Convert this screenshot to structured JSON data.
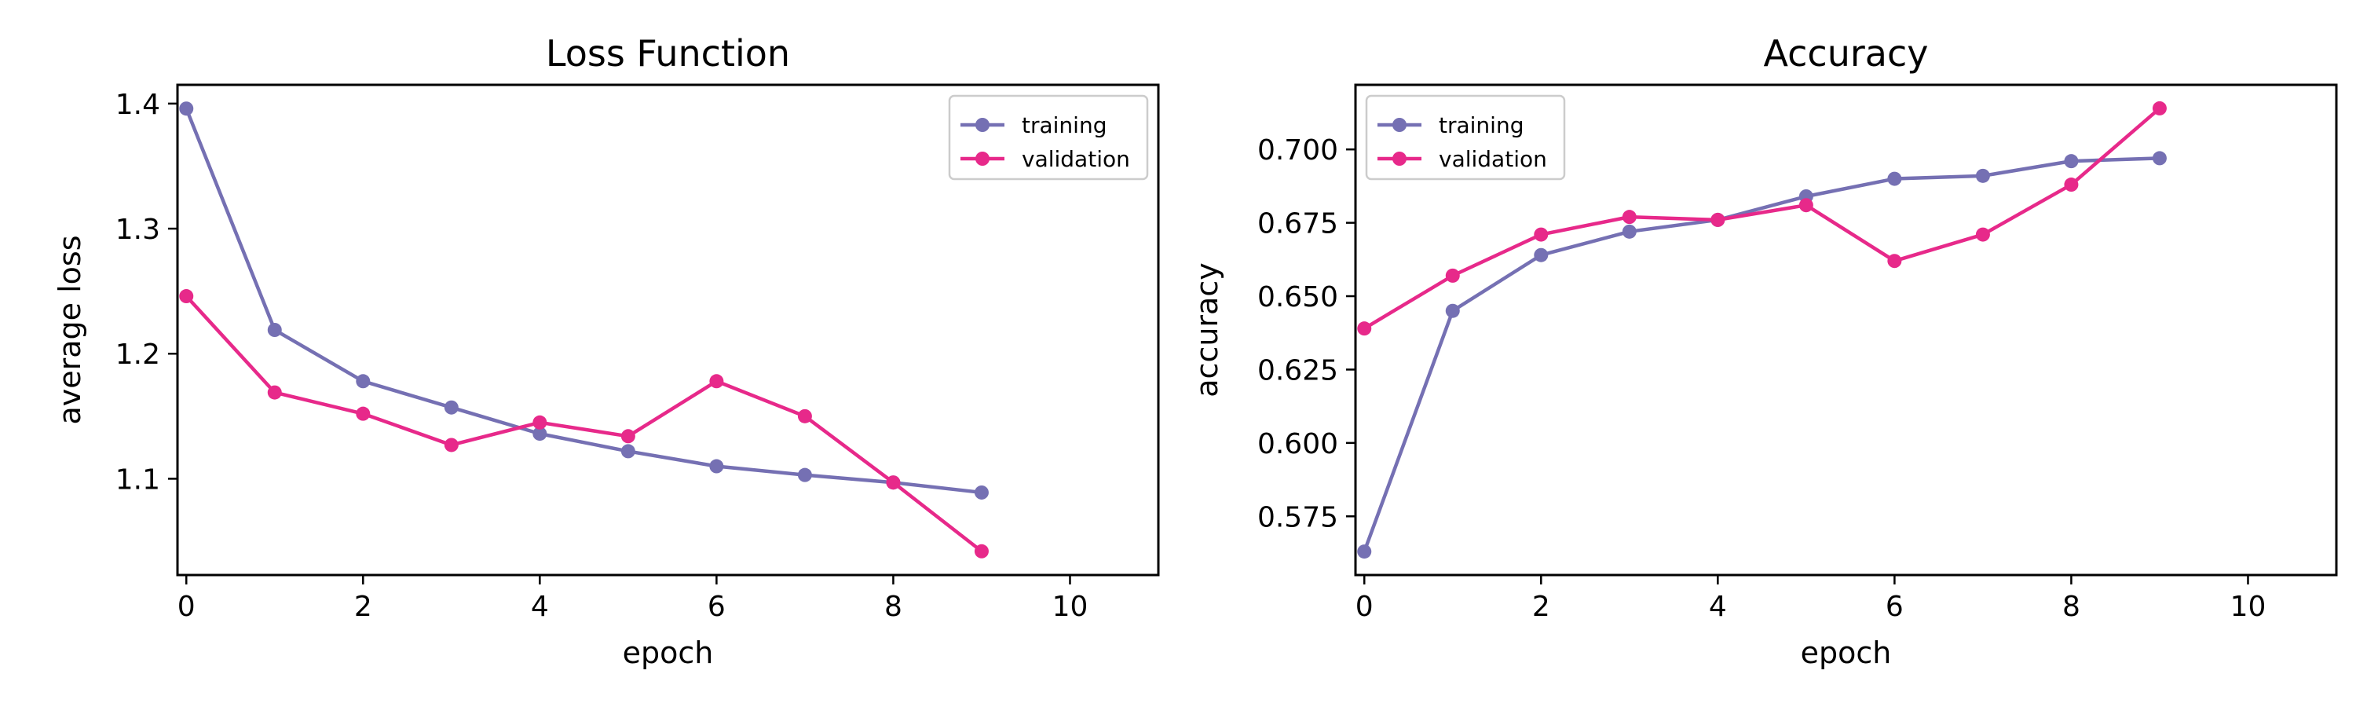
{
  "chart_data": [
    {
      "type": "line",
      "title": "Loss Function",
      "xlabel": "epoch",
      "ylabel": "average loss",
      "xlim": [
        -0.1,
        11.0
      ],
      "ylim": [
        1.023,
        1.415
      ],
      "xticks": [
        0,
        2,
        4,
        6,
        8,
        10
      ],
      "yticks": [
        1.1,
        1.2,
        1.3,
        1.4
      ],
      "ytick_labels": [
        "1.1",
        "1.2",
        "1.3",
        "1.4"
      ],
      "grid": false,
      "legend_position": "top-right",
      "x": [
        0,
        1,
        2,
        3,
        4,
        5,
        6,
        7,
        8,
        9
      ],
      "series": [
        {
          "name": "training",
          "color": "#7570b3",
          "values": [
            1.396,
            1.219,
            1.178,
            1.157,
            1.136,
            1.122,
            1.11,
            1.103,
            1.097,
            1.089
          ]
        },
        {
          "name": "validation",
          "color": "#e7298a",
          "values": [
            1.246,
            1.169,
            1.152,
            1.127,
            1.145,
            1.134,
            1.178,
            1.15,
            1.097,
            1.042
          ]
        }
      ]
    },
    {
      "type": "line",
      "title": "Accuracy",
      "xlabel": "epoch",
      "ylabel": "accuracy",
      "xlim": [
        -0.1,
        11.0
      ],
      "ylim": [
        0.555,
        0.722
      ],
      "xticks": [
        0,
        2,
        4,
        6,
        8,
        10
      ],
      "yticks": [
        0.575,
        0.6,
        0.625,
        0.65,
        0.675,
        0.7
      ],
      "ytick_labels": [
        "0.575",
        "0.600",
        "0.625",
        "0.650",
        "0.675",
        "0.700"
      ],
      "grid": false,
      "legend_position": "top-left",
      "x": [
        0,
        1,
        2,
        3,
        4,
        5,
        6,
        7,
        8,
        9
      ],
      "series": [
        {
          "name": "training",
          "color": "#7570b3",
          "values": [
            0.563,
            0.645,
            0.664,
            0.672,
            0.676,
            0.684,
            0.69,
            0.691,
            0.696,
            0.697
          ]
        },
        {
          "name": "validation",
          "color": "#e7298a",
          "values": [
            0.639,
            0.657,
            0.671,
            0.677,
            0.676,
            0.681,
            0.662,
            0.671,
            0.688,
            0.714
          ]
        }
      ]
    }
  ]
}
